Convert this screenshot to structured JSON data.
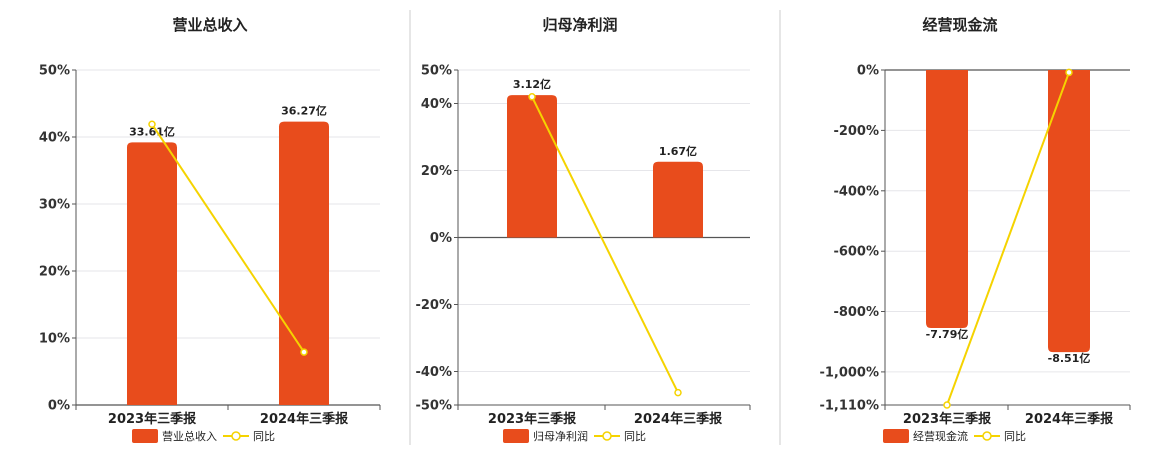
{
  "chart_data": [
    {
      "type": "bar",
      "title": "营业总收入",
      "categories": [
        "2023年三季报",
        "2024年三季报"
      ],
      "series": [
        {
          "name": "营业总收入",
          "type": "bar",
          "values": [
            39.2,
            42.3
          ],
          "data_labels": [
            "33.61亿",
            "36.27亿"
          ]
        },
        {
          "name": "同比",
          "type": "line",
          "values": [
            41.9,
            7.9
          ]
        }
      ],
      "y_ticks": [
        "50%",
        "40%",
        "30%",
        "20%",
        "10%",
        "0%"
      ],
      "ylim": [
        0,
        50
      ],
      "grid": true,
      "legend": "bottom"
    },
    {
      "type": "bar",
      "title": "归母净利润",
      "categories": [
        "2023年三季报",
        "2024年三季报"
      ],
      "series": [
        {
          "name": "归母净利润",
          "type": "bar",
          "values": [
            42.5,
            22.6
          ],
          "data_labels": [
            "3.12亿",
            "1.67亿"
          ]
        },
        {
          "name": "同比",
          "type": "line",
          "values": [
            42.0,
            -46.3
          ]
        }
      ],
      "y_ticks": [
        "50%",
        "40%",
        "20%",
        "0%",
        "-20%",
        "-40%",
        "-50%"
      ],
      "ylim": [
        -50,
        50
      ],
      "grid": true,
      "legend": "bottom"
    },
    {
      "type": "bar",
      "title": "经营现金流",
      "categories": [
        "2023年三季报",
        "2024年三季报"
      ],
      "series": [
        {
          "name": "经营现金流",
          "type": "bar",
          "values": [
            -855,
            -935
          ],
          "data_labels": [
            "-7.79亿",
            "-8.51亿"
          ]
        },
        {
          "name": "同比",
          "type": "line",
          "values": [
            -1110,
            -8
          ]
        }
      ],
      "y_ticks": [
        "0%",
        "-200%",
        "-400%",
        "-600%",
        "-800%",
        "-1,000%",
        "-1,110%"
      ],
      "ylim": [
        -1110,
        0
      ],
      "grid": true,
      "legend": "bottom"
    }
  ],
  "colors": {
    "bar": "#e84c1c",
    "line": "#f5d300",
    "grid": "#e6e6ea",
    "axis": "#555555",
    "divider": "#cccccc"
  }
}
